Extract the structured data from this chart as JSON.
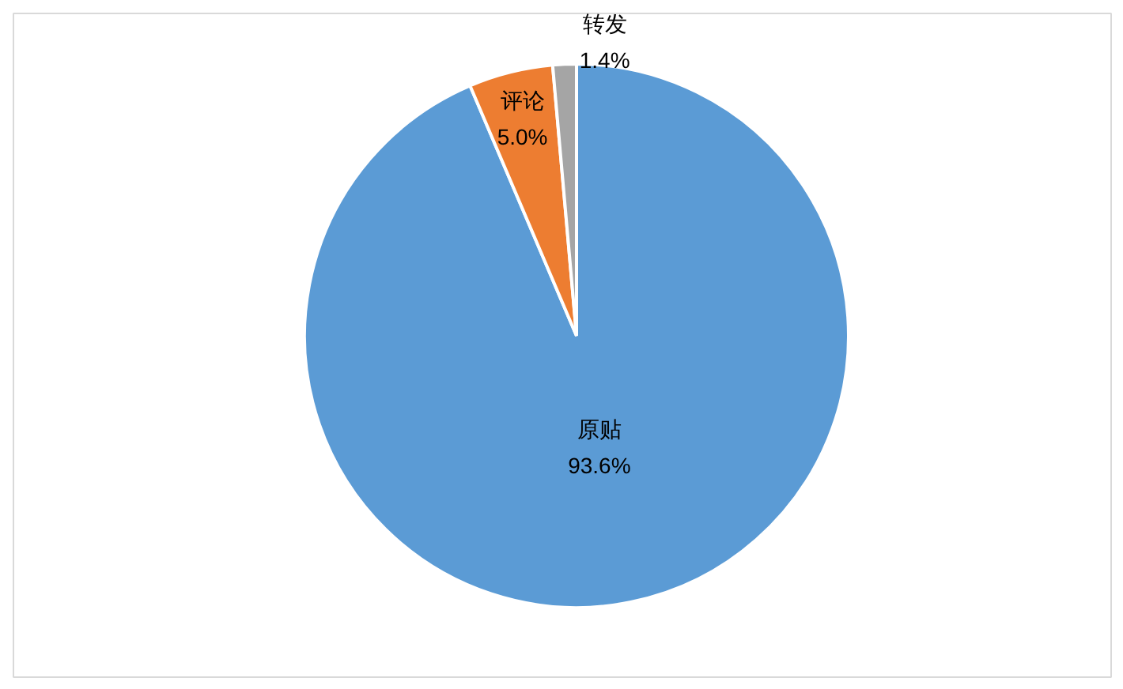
{
  "chart_data": {
    "type": "pie",
    "categories": [
      "原贴",
      "评论",
      "转发"
    ],
    "values": [
      93.6,
      5.0,
      1.4
    ],
    "colors": [
      "#5b9bd5",
      "#ed7d31",
      "#a5a5a5"
    ],
    "value_labels": [
      "93.6%",
      "5.0%",
      "1.4%"
    ],
    "legend": false
  }
}
